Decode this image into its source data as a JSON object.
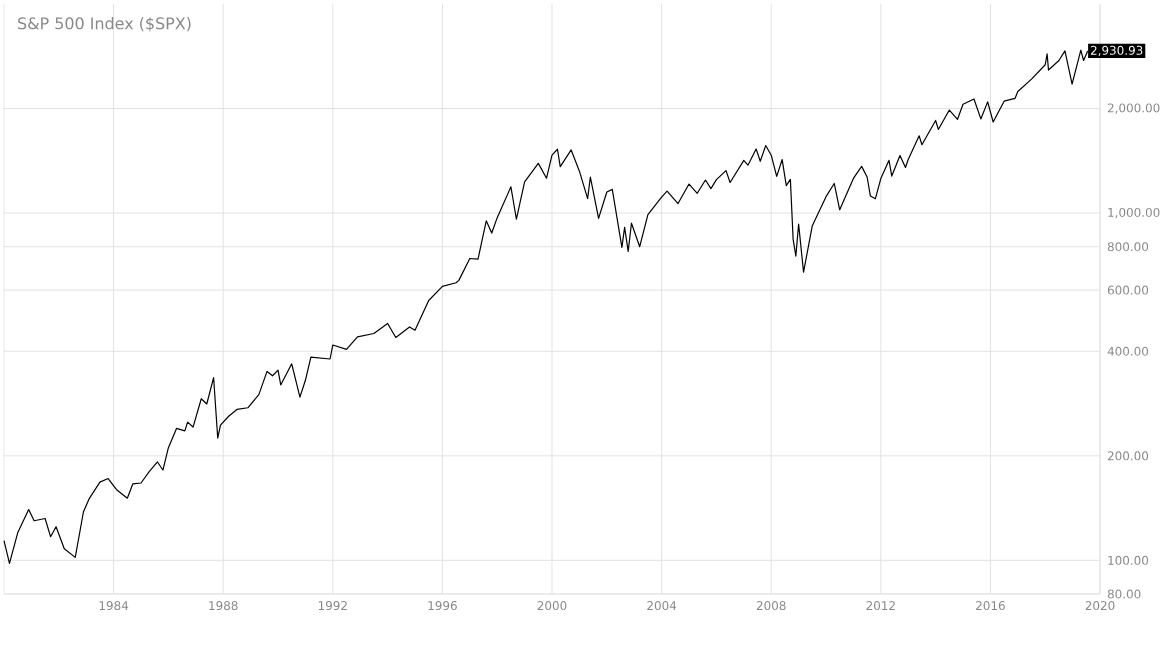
{
  "chart_data": {
    "type": "line",
    "title": "S&P 500 Index ($SPX)",
    "series": [
      {
        "color": "#000000",
        "x": [
          1980.0,
          1980.2,
          1980.5,
          1980.9,
          1981.1,
          1981.5,
          1981.7,
          1981.9,
          1982.2,
          1982.6,
          1982.9,
          1983.1,
          1983.5,
          1983.8,
          1984.1,
          1984.5,
          1984.7,
          1985.0,
          1985.3,
          1985.6,
          1985.8,
          1986.0,
          1986.3,
          1986.6,
          1986.7,
          1986.9,
          1987.2,
          1987.4,
          1987.65,
          1987.8,
          1987.9,
          1988.2,
          1988.5,
          1988.9,
          1989.3,
          1989.6,
          1989.8,
          1990.0,
          1990.1,
          1990.5,
          1990.8,
          1991.0,
          1991.2,
          1991.9,
          1992.0,
          1992.5,
          1992.9,
          1993.5,
          1994.0,
          1994.3,
          1994.8,
          1995.0,
          1995.5,
          1996.0,
          1996.5,
          1996.6,
          1997.0,
          1997.3,
          1997.6,
          1997.8,
          1998.0,
          1998.5,
          1998.7,
          1999.0,
          1999.5,
          1999.8,
          2000.0,
          2000.2,
          2000.3,
          2000.7,
          2001.0,
          2001.3,
          2001.4,
          2001.7,
          2002.0,
          2002.2,
          2002.55,
          2002.65,
          2002.78,
          2002.9,
          2003.2,
          2003.5,
          2004.0,
          2004.2,
          2004.6,
          2005.0,
          2005.3,
          2005.6,
          2005.8,
          2006.0,
          2006.35,
          2006.5,
          2007.0,
          2007.15,
          2007.45,
          2007.6,
          2007.8,
          2008.0,
          2008.2,
          2008.4,
          2008.55,
          2008.7,
          2008.8,
          2008.9,
          2009.0,
          2009.18,
          2009.5,
          2010.0,
          2010.3,
          2010.5,
          2011.0,
          2011.3,
          2011.5,
          2011.62,
          2011.8,
          2012.0,
          2012.3,
          2012.4,
          2012.7,
          2012.9,
          2013.0,
          2013.4,
          2013.5,
          2014.0,
          2014.1,
          2014.5,
          2014.8,
          2015.0,
          2015.4,
          2015.65,
          2015.9,
          2016.1,
          2016.5,
          2016.9,
          2017.0,
          2017.5,
          2018.0,
          2018.07,
          2018.12,
          2018.5,
          2018.72,
          2018.98,
          2019.3,
          2019.4,
          2019.55
        ],
        "values": [
          114,
          98,
          120,
          140,
          130,
          132,
          117,
          125,
          108,
          102,
          138,
          150,
          168,
          172,
          160,
          151,
          166,
          167,
          180,
          192,
          182,
          211,
          240,
          236,
          250,
          242,
          292,
          282,
          336,
          225,
          245,
          260,
          272,
          275,
          300,
          350,
          340,
          353,
          320,
          368,
          295,
          330,
          385,
          380,
          417,
          405,
          440,
          450,
          481,
          438,
          470,
          460,
          560,
          615,
          630,
          640,
          740,
          737,
          950,
          876,
          970,
          1190,
          960,
          1229,
          1390,
          1260,
          1469,
          1527,
          1360,
          1520,
          1320,
          1100,
          1270,
          965,
          1150,
          1170,
          797,
          910,
          776,
          935,
          800,
          990,
          1112,
          1157,
          1065,
          1212,
          1140,
          1245,
          1176,
          1248,
          1325,
          1225,
          1418,
          1374,
          1530,
          1410,
          1565,
          1468,
          1275,
          1426,
          1200,
          1250,
          840,
          752,
          930,
          676,
          920,
          1115,
          1217,
          1022,
          1258,
          1363,
          1270,
          1119,
          1099,
          1257,
          1419,
          1278,
          1465,
          1353,
          1426,
          1669,
          1573,
          1848,
          1741,
          1980,
          1862,
          2058,
          2130,
          1867,
          2090,
          1829,
          2100,
          2140,
          2238,
          2430,
          2673,
          2872,
          2581,
          2750,
          2930,
          2351,
          2945,
          2750,
          2930.93
        ]
      }
    ],
    "annotations": [
      {
        "text": "2,930.93",
        "x": 2019.55,
        "y": 2930.93
      }
    ],
    "log": "y",
    "grid": true,
    "xlim": [
      1980,
      2020
    ],
    "xticks": [
      1984,
      1988,
      1992,
      1996,
      2000,
      2004,
      2008,
      2012,
      2016,
      2020
    ],
    "ylim": [
      80,
      4000
    ],
    "yticks": [
      {
        "value": 80,
        "label": "80.00"
      },
      {
        "value": 100,
        "label": "100.00"
      },
      {
        "value": 200,
        "label": "200.00"
      },
      {
        "value": 400,
        "label": "400.00"
      },
      {
        "value": 600,
        "label": "600.00"
      },
      {
        "value": 800,
        "label": "800.00"
      },
      {
        "value": 1000,
        "label": "1,000.00"
      },
      {
        "value": 2000,
        "label": "2,000.00"
      }
    ]
  }
}
